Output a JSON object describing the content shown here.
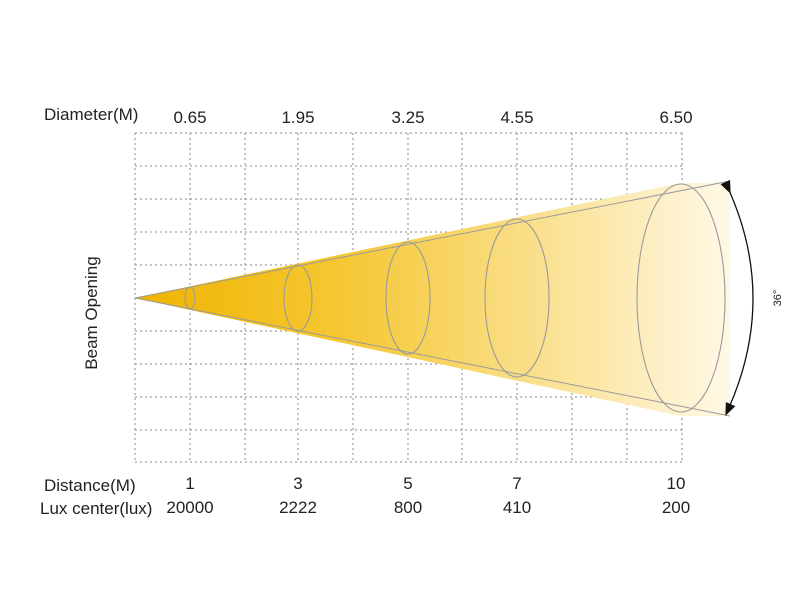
{
  "labels": {
    "diameter": "Diameter(M)",
    "distance": "Distance(M)",
    "lux": "Lux center(lux)",
    "beam_opening": "Beam Opening",
    "angle": "36°"
  },
  "columns": [
    {
      "diameter": "0.65",
      "distance": "1",
      "lux": "20000"
    },
    {
      "diameter": "1.95",
      "distance": "3",
      "lux": "2222"
    },
    {
      "diameter": "3.25",
      "distance": "5",
      "lux": "800"
    },
    {
      "diameter": "4.55",
      "distance": "7",
      "lux": "410"
    },
    {
      "diameter": "6.50",
      "distance": "10",
      "lux": "200"
    }
  ],
  "colors": {
    "beam_start": "#f0b400",
    "beam_end": "#fff8e6",
    "grid": "#8a8a8a",
    "text": "#222222"
  }
}
